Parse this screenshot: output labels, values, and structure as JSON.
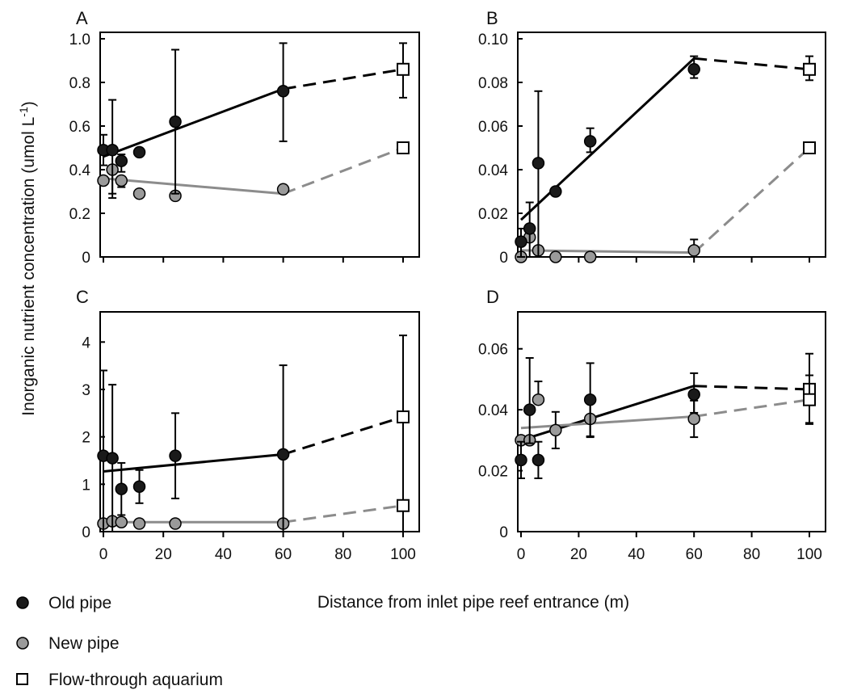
{
  "figure": {
    "ylabel": "Inorganic nutrient concentration (umol L",
    "ylabel_sup": "-1",
    "ylabel_end": ")",
    "xlabel": "Distance from inlet pipe reef entrance (m)"
  },
  "legend": [
    {
      "label": "Old pipe",
      "marker": "circle",
      "color": "#1a1a1a"
    },
    {
      "label": "New pipe",
      "marker": "circle",
      "color": "#9a9a9a"
    },
    {
      "label": "Flow-through aquarium",
      "marker": "square",
      "color": "#ffffff"
    }
  ],
  "colors": {
    "old": "#1a1a1a",
    "new": "#9a9a9a",
    "new_line": "#8c8c8c",
    "aquarium_fill": "#ffffff"
  },
  "chart_data": [
    {
      "panel": "A",
      "type": "scatter",
      "xlim": [
        0,
        100
      ],
      "ylim": [
        0,
        1.0
      ],
      "xticks": [
        0,
        20,
        40,
        60,
        80,
        100
      ],
      "xtick_labels": [],
      "yticks": [
        0,
        0.2,
        0.4,
        0.6,
        0.8,
        1.0
      ],
      "ytick_labels": [
        "0",
        "0.2",
        "0.4",
        "0.6",
        "0.8",
        "1.0"
      ],
      "series": [
        {
          "name": "Old pipe",
          "x": [
            0,
            3,
            6,
            12,
            24,
            60
          ],
          "y": [
            0.49,
            0.49,
            0.44,
            0.48,
            0.62,
            0.76
          ],
          "err_low": [
            0.07,
            0.2,
            0.05,
            0,
            0.33,
            0.23
          ],
          "err_high": [
            0.07,
            0.23,
            0.03,
            0,
            0.33,
            0.22
          ],
          "trend": [
            [
              0,
              0.46
            ],
            [
              60,
              0.77
            ]
          ]
        },
        {
          "name": "New pipe",
          "x": [
            0,
            3,
            6,
            12,
            24,
            60
          ],
          "y": [
            0.35,
            0.4,
            0.35,
            0.29,
            0.28,
            0.31
          ],
          "err_low": [
            0,
            0.13,
            0.03,
            0,
            0,
            0
          ],
          "err_high": [
            0,
            0,
            0,
            0,
            0,
            0
          ],
          "trend": [
            [
              0,
              0.36
            ],
            [
              60,
              0.29
            ]
          ]
        },
        {
          "name": "Flow-through aquarium",
          "x": [
            100,
            100
          ],
          "y": [
            0.86,
            0.5
          ],
          "err_low": [
            0.13,
            0
          ],
          "err_high": [
            0.12,
            0
          ]
        }
      ],
      "dashed": [
        {
          "from": [
            60,
            0.77
          ],
          "to": [
            100,
            0.86
          ],
          "style": "old"
        },
        {
          "from": [
            60,
            0.29
          ],
          "to": [
            100,
            0.5
          ],
          "style": "new"
        }
      ]
    },
    {
      "panel": "B",
      "type": "scatter",
      "xlim": [
        0,
        100
      ],
      "ylim": [
        0,
        0.1
      ],
      "xticks": [
        0,
        20,
        40,
        60,
        80,
        100
      ],
      "xtick_labels": [],
      "yticks": [
        0,
        0.02,
        0.04,
        0.06,
        0.08,
        0.1
      ],
      "ytick_labels": [
        "0",
        "0.02",
        "0.04",
        "0.06",
        "0.08",
        "0.10"
      ],
      "series": [
        {
          "name": "Old pipe",
          "x": [
            0,
            3,
            6,
            12,
            24,
            60
          ],
          "y": [
            0.007,
            0.013,
            0.043,
            0.03,
            0.053,
            0.086
          ],
          "err_low": [
            0.007,
            0.013,
            0.043,
            0,
            0.005,
            0.004
          ],
          "err_high": [
            0.006,
            0.012,
            0.033,
            0,
            0.006,
            0.006
          ],
          "trend": [
            [
              0,
              0.017
            ],
            [
              60,
              0.091
            ]
          ]
        },
        {
          "name": "New pipe",
          "x": [
            0,
            3,
            6,
            12,
            24,
            60
          ],
          "y": [
            0,
            0.009,
            0.003,
            0,
            0,
            0.003
          ],
          "err_low": [
            0,
            0,
            0.003,
            0,
            0,
            0.003
          ],
          "err_high": [
            0,
            0,
            0,
            0,
            0,
            0.005
          ],
          "trend": [
            [
              0,
              0.003
            ],
            [
              60,
              0.002
            ]
          ]
        },
        {
          "name": "Flow-through aquarium",
          "x": [
            100,
            100
          ],
          "y": [
            0.086,
            0.05
          ],
          "err_low": [
            0.005,
            0
          ],
          "err_high": [
            0.006,
            0
          ]
        }
      ],
      "dashed": [
        {
          "from": [
            60,
            0.091
          ],
          "to": [
            100,
            0.086
          ],
          "style": "old"
        },
        {
          "from": [
            60,
            0.002
          ],
          "to": [
            100,
            0.05
          ],
          "style": "new"
        }
      ]
    },
    {
      "panel": "C",
      "type": "scatter",
      "xlim": [
        0,
        100
      ],
      "ylim": [
        0,
        4.5
      ],
      "xticks": [
        0,
        20,
        40,
        60,
        80,
        100
      ],
      "xtick_labels": [
        "0",
        "20",
        "40",
        "60",
        "80",
        "100"
      ],
      "yticks": [
        0,
        1,
        2,
        3,
        4
      ],
      "ytick_labels": [
        "0",
        "1",
        "2",
        "3",
        "4"
      ],
      "series": [
        {
          "name": "Old pipe",
          "x": [
            0,
            3,
            6,
            12,
            24,
            60
          ],
          "y": [
            1.6,
            1.55,
            0.9,
            0.95,
            1.6,
            1.63
          ],
          "err_low": [
            1.6,
            1.55,
            0.55,
            0.35,
            0.9,
            1.63
          ],
          "err_high": [
            1.8,
            1.55,
            0.55,
            0.35,
            0.9,
            1.88
          ],
          "trend": [
            [
              0,
              1.27
            ],
            [
              60,
              1.63
            ]
          ]
        },
        {
          "name": "New pipe",
          "x": [
            0,
            3,
            6,
            12,
            24,
            60
          ],
          "y": [
            0.17,
            0.22,
            0.2,
            0.17,
            0.17,
            0.17
          ],
          "err_low": [
            0,
            0,
            0,
            0,
            0,
            0
          ],
          "err_high": [
            0,
            0,
            0,
            0,
            0,
            0
          ],
          "trend": [
            [
              0,
              0.2
            ],
            [
              60,
              0.2
            ]
          ]
        },
        {
          "name": "Flow-through aquarium",
          "x": [
            100,
            100
          ],
          "y": [
            2.42,
            0.55
          ],
          "err_low": [
            2.42,
            0
          ],
          "err_high": [
            1.72,
            0
          ]
        }
      ],
      "dashed": [
        {
          "from": [
            60,
            1.63
          ],
          "to": [
            100,
            2.42
          ],
          "style": "old"
        },
        {
          "from": [
            60,
            0.2
          ],
          "to": [
            100,
            0.55
          ],
          "style": "new"
        }
      ]
    },
    {
      "panel": "D",
      "type": "scatter",
      "xlim": [
        0,
        100
      ],
      "ylim": [
        0,
        0.07
      ],
      "xticks": [
        0,
        20,
        40,
        60,
        80,
        100
      ],
      "xtick_labels": [
        "0",
        "20",
        "40",
        "60",
        "80",
        "100"
      ],
      "yticks": [
        0,
        0.02,
        0.04,
        0.06
      ],
      "ytick_labels": [
        "0",
        "0.02",
        "0.04",
        "0.06"
      ],
      "series": [
        {
          "name": "Old pipe",
          "x": [
            0,
            3,
            6,
            24,
            60
          ],
          "y": [
            0.0235,
            0.04,
            0.0235,
            0.0433,
            0.045
          ],
          "err_low": [
            0.006,
            0.011,
            0.006,
            0.012,
            0.006
          ],
          "err_high": [
            0.006,
            0.017,
            0.006,
            0.012,
            0.007
          ],
          "trend": [
            [
              0,
              0.03
            ],
            [
              60,
              0.0478
            ]
          ]
        },
        {
          "name": "New pipe",
          "x": [
            0,
            3,
            6,
            12,
            24,
            60
          ],
          "y": [
            0.03,
            0.03,
            0.0433,
            0.0333,
            0.037,
            0.037
          ],
          "err_low": [
            0,
            0,
            0,
            0.006,
            0.006,
            0.006
          ],
          "err_high": [
            0,
            0,
            0.006,
            0.006,
            0.006,
            0.006
          ],
          "trend": [
            [
              0,
              0.034
            ],
            [
              60,
              0.0378
            ]
          ]
        },
        {
          "name": "Flow-through aquarium",
          "x": [
            100,
            100
          ],
          "y": [
            0.0467,
            0.0433
          ],
          "err_low": [
            0.011,
            0.008
          ],
          "err_high": [
            0.0117,
            0.008
          ]
        }
      ],
      "dashed": [
        {
          "from": [
            60,
            0.0478
          ],
          "to": [
            100,
            0.0467
          ],
          "style": "old"
        },
        {
          "from": [
            60,
            0.0378
          ],
          "to": [
            100,
            0.0433
          ],
          "style": "new"
        }
      ]
    }
  ]
}
